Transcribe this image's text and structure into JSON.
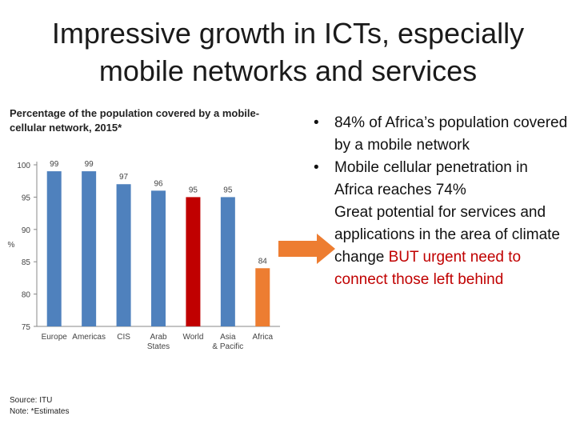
{
  "title": "Impressive growth in ICTs, especially mobile networks and services",
  "chart_heading": "Percentage of the population covered by a mobile-cellular network, 2015*",
  "source": "Source: ITU",
  "note": "Note: *Estimates",
  "bullets": [
    {
      "marker": "•",
      "text": "84% of Africa’s population covered by a mobile network"
    },
    {
      "marker": "•",
      "text": "Mobile cellular penetration in Africa reaches 74%"
    }
  ],
  "arrow_point": {
    "text": "Great potential for services and applications in the area of climate change ",
    "highlight": "BUT urgent need to connect those left behind",
    "highlight_color": "#c00000"
  },
  "arrow_color": "#ed7d31",
  "chart_data": {
    "type": "bar",
    "categories": [
      "Europe",
      "Americas",
      "CIS",
      "Arab States",
      "World",
      "Asia & Pacific",
      "Africa"
    ],
    "values": [
      99,
      99,
      97,
      96,
      95,
      95,
      84
    ],
    "data_labels": [
      "99",
      "99",
      "97",
      "96",
      "95",
      "95",
      "84"
    ],
    "colors": [
      "#4f81bd",
      "#4f81bd",
      "#4f81bd",
      "#4f81bd",
      "#c00000",
      "#4f81bd",
      "#ed7d31"
    ],
    "ylabel": "%",
    "ylim": [
      75,
      100
    ],
    "yticks": [
      75,
      80,
      85,
      90,
      95,
      100
    ],
    "grid": false,
    "legend": "none"
  }
}
